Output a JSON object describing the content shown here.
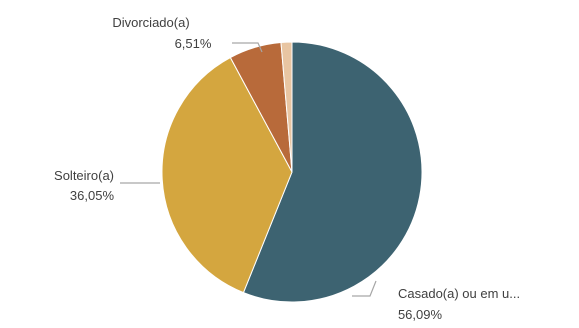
{
  "chart_data": {
    "type": "pie",
    "title": "",
    "slices": [
      {
        "label": "Casado(a) ou em u...",
        "value": 56.09,
        "value_label": "56,09%",
        "color": "#3d6371"
      },
      {
        "label": "Solteiro(a)",
        "value": 36.05,
        "value_label": "36,05%",
        "color": "#d4a63f"
      },
      {
        "label": "Divorciado(a)",
        "value": 6.51,
        "value_label": "6,51%",
        "color": "#b86a3a"
      },
      {
        "label": "",
        "value": 1.35,
        "value_label": "",
        "color": "#e8c5a2"
      }
    ],
    "legend": "none",
    "start_angle_deg": 0,
    "direction": "clockwise"
  }
}
